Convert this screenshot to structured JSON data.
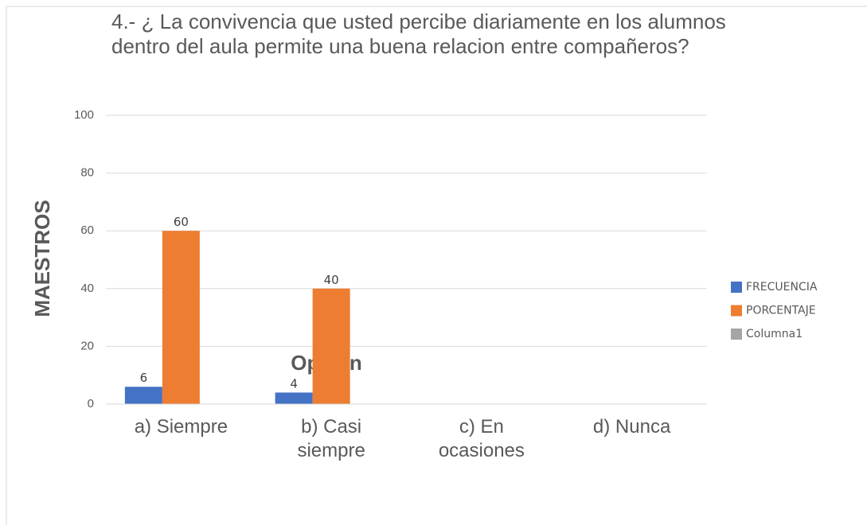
{
  "chart_data": {
    "type": "bar",
    "title": "4.- ¿ La convivencia que usted percibe diariamente en los alumnos dentro del aula permite una buena relacion entre compañeros?",
    "y_label": "MAESTROS",
    "x_label": "Opcion",
    "categories": [
      "a) Siempre",
      "b) Casi siempre",
      "c) En ocasiones",
      "d) Nunca"
    ],
    "series": [
      {
        "name": "FRECUENCIA",
        "color": "#4472c4",
        "values": [
          6,
          4,
          null,
          null
        ]
      },
      {
        "name": "PORCENTAJE",
        "color": "#ed7d31",
        "values": [
          60,
          40,
          null,
          null
        ]
      },
      {
        "name": "Columna1",
        "color": "#a5a5a5",
        "values": [
          null,
          null,
          null,
          null
        ]
      }
    ],
    "ylim": [
      0,
      100
    ],
    "yticks": [
      0,
      20,
      40,
      60,
      80,
      100
    ],
    "grid": true,
    "legend": "right"
  }
}
